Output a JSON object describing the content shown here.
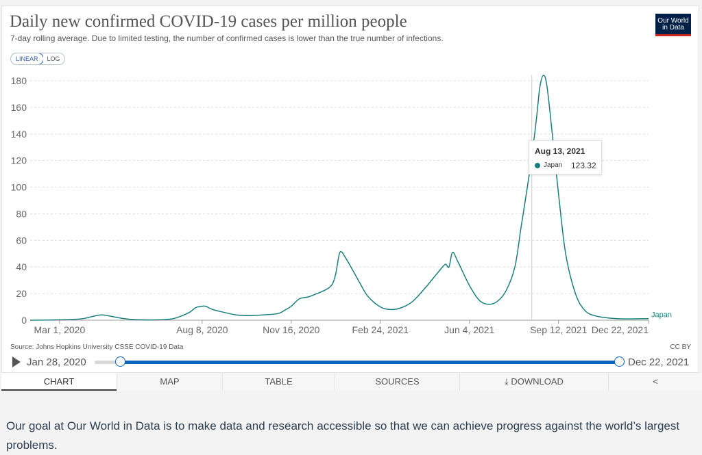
{
  "header": {
    "title": "Daily new confirmed COVID-19 cases per million people",
    "subtitle": "7-day rolling average. Due to limited testing, the number of confirmed cases is lower than the true number of infections.",
    "logo_line1": "Our World",
    "logo_line2": "in Data"
  },
  "scale_toggle": {
    "linear": "LINEAR",
    "log": "LOG",
    "selected": "LINEAR"
  },
  "tooltip": {
    "date": "Aug 13, 2021",
    "country": "Japan",
    "value": "123.32"
  },
  "source": "Source: Johns Hopkins University CSSE COVID-19 Data",
  "license": "CC BY",
  "timeline": {
    "start": "Jan 28, 2020",
    "end": "Dec 22, 2021"
  },
  "tabs": [
    "CHART",
    "MAP",
    "TABLE",
    "SOURCES",
    "DOWNLOAD",
    ""
  ],
  "tabs_active": "CHART",
  "footer": "Our goal at Our World in Data is to make data and research accessible so that we can achieve progress against the world’s largest problems.",
  "colors": {
    "line": "#1a7f7c",
    "brand": "#002147",
    "brand_accent": "#ce261e",
    "slider": "#0a64c2"
  },
  "chart_data": {
    "type": "line",
    "title": "Daily new confirmed COVID-19 cases per million people",
    "subtitle": "7-day rolling average. Due to limited testing, the number of confirmed cases is lower than the true number of infections.",
    "xlabel": "",
    "ylabel": "",
    "ylim": [
      0,
      180
    ],
    "xlim": [
      "2020-01-28",
      "2021-12-22"
    ],
    "y_ticks": [
      0,
      20,
      40,
      60,
      80,
      100,
      120,
      140,
      160,
      180
    ],
    "x_ticks": [
      {
        "date": "2020-03-01",
        "label": "Mar 1, 2020"
      },
      {
        "date": "2020-08-08",
        "label": "Aug 8, 2020"
      },
      {
        "date": "2020-11-16",
        "label": "Nov 16, 2020"
      },
      {
        "date": "2021-02-24",
        "label": "Feb 24, 2021"
      },
      {
        "date": "2021-06-04",
        "label": "Jun 4, 2021"
      },
      {
        "date": "2021-09-12",
        "label": "Sep 12, 2021"
      },
      {
        "date": "2021-12-22",
        "label": "Dec 22, 2021"
      }
    ],
    "grid": true,
    "series": [
      {
        "name": "Japan",
        "points": [
          [
            "2020-01-28",
            0
          ],
          [
            "2020-03-01",
            0.3
          ],
          [
            "2020-03-25",
            1.0
          ],
          [
            "2020-04-08",
            3.0
          ],
          [
            "2020-04-18",
            4.0
          ],
          [
            "2020-05-01",
            2.5
          ],
          [
            "2020-05-15",
            1.0
          ],
          [
            "2020-06-01",
            0.3
          ],
          [
            "2020-06-20",
            0.3
          ],
          [
            "2020-07-05",
            1.0
          ],
          [
            "2020-07-15",
            3.0
          ],
          [
            "2020-07-25",
            6.0
          ],
          [
            "2020-08-01",
            9.5
          ],
          [
            "2020-08-08",
            10.5
          ],
          [
            "2020-08-12",
            10.5
          ],
          [
            "2020-08-20",
            8.0
          ],
          [
            "2020-09-01",
            6.0
          ],
          [
            "2020-09-15",
            4.0
          ],
          [
            "2020-10-01",
            3.5
          ],
          [
            "2020-10-15",
            4.0
          ],
          [
            "2020-11-01",
            5.0
          ],
          [
            "2020-11-10",
            8.0
          ],
          [
            "2020-11-16",
            10.5
          ],
          [
            "2020-11-25",
            16.0
          ],
          [
            "2020-12-05",
            17.5
          ],
          [
            "2020-12-15",
            20.0
          ],
          [
            "2020-12-25",
            23.0
          ],
          [
            "2021-01-01",
            27.0
          ],
          [
            "2021-01-05",
            35.0
          ],
          [
            "2021-01-09",
            50.0
          ],
          [
            "2021-01-12",
            51.0
          ],
          [
            "2021-01-15",
            48.0
          ],
          [
            "2021-01-22",
            40.0
          ],
          [
            "2021-02-01",
            28.0
          ],
          [
            "2021-02-10",
            18.0
          ],
          [
            "2021-02-24",
            10.0
          ],
          [
            "2021-03-08",
            8.0
          ],
          [
            "2021-03-20",
            9.5
          ],
          [
            "2021-04-01",
            14.0
          ],
          [
            "2021-04-15",
            24.0
          ],
          [
            "2021-05-01",
            37.0
          ],
          [
            "2021-05-08",
            42.0
          ],
          [
            "2021-05-12",
            40.0
          ],
          [
            "2021-05-16",
            51.0
          ],
          [
            "2021-05-22",
            44.0
          ],
          [
            "2021-06-04",
            26.0
          ],
          [
            "2021-06-15",
            15.0
          ],
          [
            "2021-06-25",
            12.0
          ],
          [
            "2021-07-05",
            14.0
          ],
          [
            "2021-07-15",
            22.0
          ],
          [
            "2021-07-25",
            40.0
          ],
          [
            "2021-08-01",
            70.0
          ],
          [
            "2021-08-08",
            100.0
          ],
          [
            "2021-08-13",
            123.32
          ],
          [
            "2021-08-18",
            150.0
          ],
          [
            "2021-08-22",
            175.0
          ],
          [
            "2021-08-26",
            184.0
          ],
          [
            "2021-08-30",
            176.0
          ],
          [
            "2021-09-05",
            140.0
          ],
          [
            "2021-09-12",
            95.0
          ],
          [
            "2021-09-20",
            50.0
          ],
          [
            "2021-10-01",
            20.0
          ],
          [
            "2021-10-12",
            7.0
          ],
          [
            "2021-10-25",
            3.0
          ],
          [
            "2021-11-10",
            1.5
          ],
          [
            "2021-11-25",
            1.0
          ],
          [
            "2021-12-22",
            1.2
          ]
        ]
      }
    ],
    "hover": {
      "date": "2021-08-13",
      "value": 123.32
    }
  }
}
